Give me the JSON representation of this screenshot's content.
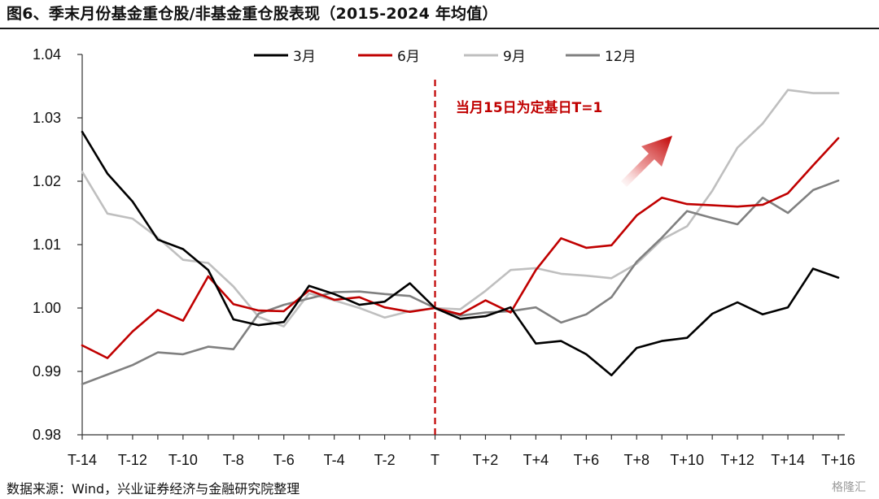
{
  "title": "图6、季末月份基金重仓股/非基金重仓股表现（2015-2024 年均值）",
  "source": "数据来源：Wind，兴业证券经济与金融研究院整理",
  "watermark": "格隆汇",
  "annotation": "当月15日为定基日T=1",
  "colors": {
    "march": "#000000",
    "june": "#c00000",
    "september": "#bfbfbf",
    "december": "#808080",
    "divider": "#c00000"
  },
  "chart_data": {
    "type": "line",
    "x": [
      "T-14",
      "T-13",
      "T-12",
      "T-11",
      "T-10",
      "T-9",
      "T-8",
      "T-7",
      "T-6",
      "T-5",
      "T-4",
      "T-3",
      "T-2",
      "T-1",
      "T",
      "T+1",
      "T+2",
      "T+3",
      "T+4",
      "T+5",
      "T+6",
      "T+7",
      "T+8",
      "T+9",
      "T+10",
      "T+11",
      "T+12",
      "T+13",
      "T+14",
      "T+15",
      "T+16"
    ],
    "xticks": [
      "T-14",
      "T-12",
      "T-10",
      "T-8",
      "T-6",
      "T-4",
      "T-2",
      "T",
      "T+2",
      "T+4",
      "T+6",
      "T+8",
      "T+10",
      "T+12",
      "T+14",
      "T+16"
    ],
    "ylim": [
      0.98,
      1.04
    ],
    "yticks": [
      "0.98",
      "0.99",
      "1.00",
      "1.01",
      "1.02",
      "1.03",
      "1.04"
    ],
    "grid": false,
    "legend_position": "top-center",
    "vertical_marker": "T",
    "series": [
      {
        "name": "3月",
        "color": "#000000",
        "values": [
          1.0278,
          1.0212,
          1.0168,
          1.0108,
          1.0093,
          1.006,
          0.9982,
          0.9973,
          0.9978,
          1.0035,
          1.0022,
          1.0005,
          1.001,
          1.0039,
          1.0,
          0.9983,
          0.9987,
          1.0001,
          0.9944,
          0.9948,
          0.9927,
          0.9894,
          0.9937,
          0.9948,
          0.9953,
          0.9991,
          1.0009,
          0.999,
          1.0001,
          1.0062,
          1.0048
        ]
      },
      {
        "name": "6月",
        "color": "#c00000",
        "values": [
          0.9941,
          0.9921,
          0.9963,
          0.9997,
          0.998,
          1.005,
          1.0006,
          0.9996,
          0.9995,
          1.0028,
          1.0013,
          1.0017,
          1.0001,
          0.9994,
          1.0,
          0.999,
          1.0012,
          0.9993,
          1.006,
          1.011,
          1.0095,
          1.0099,
          1.0146,
          1.0174,
          1.0164,
          1.0162,
          1.016,
          1.0163,
          1.0181,
          1.0225,
          1.0268
        ]
      },
      {
        "name": "9月",
        "color": "#bfbfbf",
        "values": [
          1.0215,
          1.0149,
          1.0141,
          1.0111,
          1.0076,
          1.0071,
          1.0034,
          0.9986,
          0.9971,
          1.0023,
          1.0012,
          1.0,
          0.9985,
          0.9995,
          1.0,
          0.9998,
          1.0027,
          1.006,
          1.0063,
          1.0054,
          1.0051,
          1.0047,
          1.007,
          1.0108,
          1.0129,
          1.0185,
          1.0253,
          1.0291,
          1.0344,
          1.0339,
          1.0339
        ]
      },
      {
        "name": "12月",
        "color": "#808080",
        "values": [
          0.988,
          0.9895,
          0.991,
          0.993,
          0.9927,
          0.9939,
          0.9935,
          0.9991,
          1.0005,
          1.0015,
          1.0025,
          1.0026,
          1.0022,
          1.0019,
          1.0,
          0.9988,
          0.9993,
          0.9995,
          1.0001,
          0.9977,
          0.999,
          1.0017,
          1.0073,
          1.0111,
          1.0153,
          1.0142,
          1.0132,
          1.0174,
          1.015,
          1.0186,
          1.0201
        ]
      }
    ]
  }
}
